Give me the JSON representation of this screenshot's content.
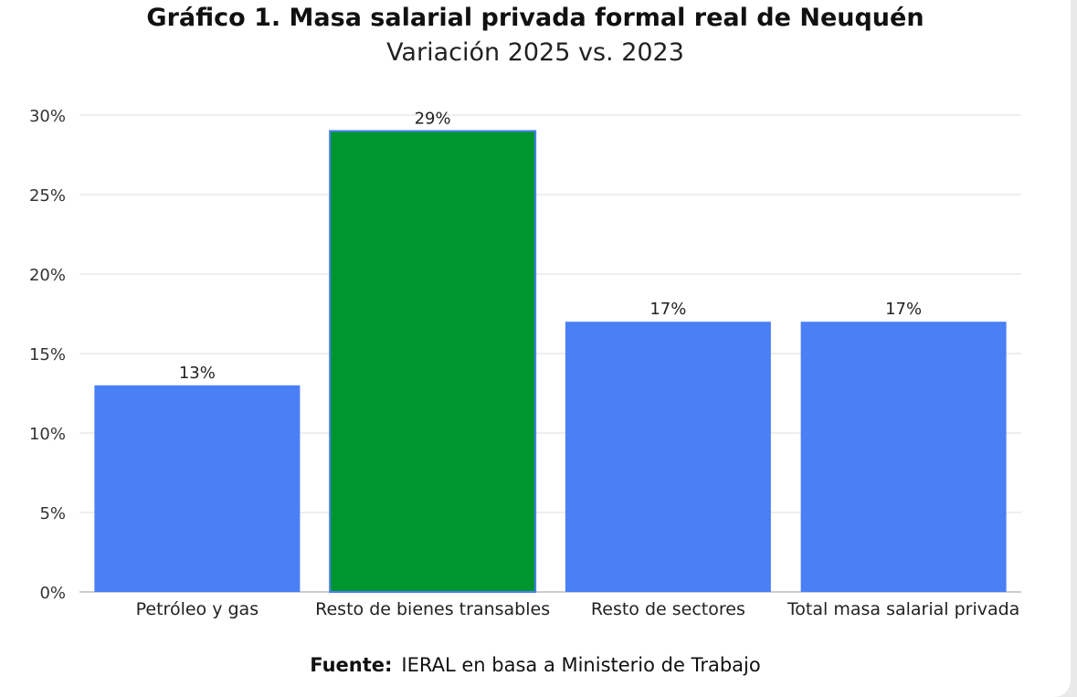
{
  "chart_data": {
    "type": "bar",
    "title": "Gráfico 1. Masa salarial privada formal real de Neuquén",
    "subtitle": "Variación 2025 vs. 2023",
    "categories": [
      "Petróleo y gas",
      "Resto de bienes transables",
      "Resto de sectores",
      "Total masa salarial privada"
    ],
    "values": [
      13,
      29,
      17,
      17
    ],
    "data_labels": [
      "13%",
      "29%",
      "17%",
      "17%"
    ],
    "colors": [
      "#4a7ff5",
      "#00962f",
      "#4a7ff5",
      "#4a7ff5"
    ],
    "highlight_border_color": "#4a7ff5",
    "ylim": [
      0,
      30
    ],
    "yticks": [
      0,
      5,
      10,
      15,
      20,
      25,
      30
    ],
    "ytick_labels": [
      "0%",
      "5%",
      "10%",
      "15%",
      "20%",
      "25%",
      "30%"
    ],
    "grid": true,
    "xlabel": "",
    "ylabel": ""
  },
  "source": {
    "label": "Fuente:",
    "text": "IERAL en basa a Ministerio de Trabajo"
  }
}
